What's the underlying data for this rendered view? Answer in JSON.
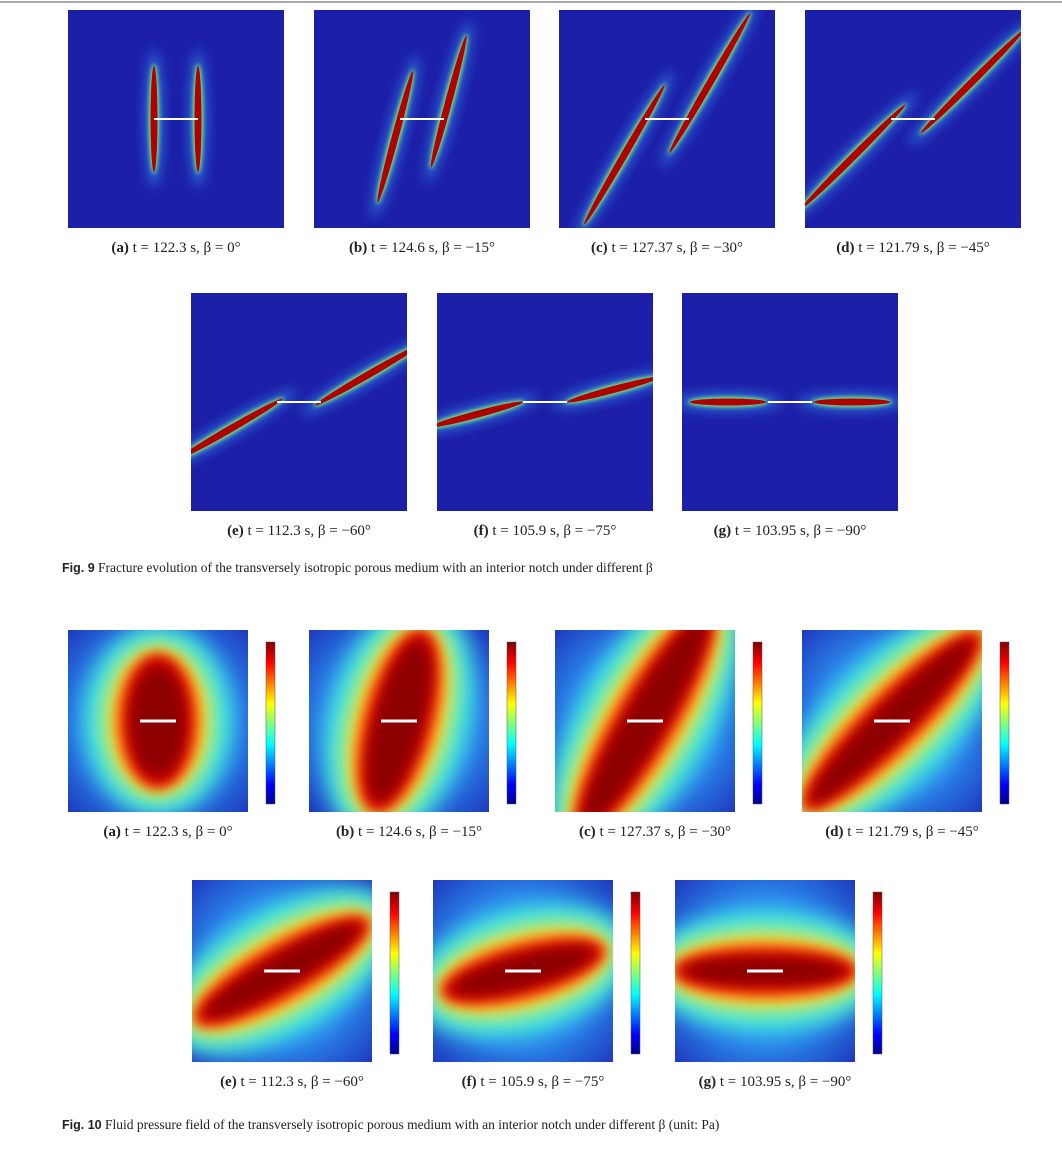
{
  "figures": [
    {
      "panels": [
        {
          "label": "(a)",
          "caption": "t = 122.3 s, β = 0°"
        },
        {
          "label": "(b)",
          "caption": "t = 124.6 s, β = −15°"
        },
        {
          "label": "(c)",
          "caption": "t = 127.37 s, β = −30°"
        },
        {
          "label": "(d)",
          "caption": "t = 121.79 s, β = −45°"
        },
        {
          "label": "(e)",
          "caption": "t = 112.3 s, β = −60°"
        },
        {
          "label": "(f)",
          "caption": "t = 105.9 s, β = −75°"
        },
        {
          "label": "(g)",
          "caption": "t = 103.95 s, β = −90°"
        }
      ],
      "caption_label": "Fig. 9",
      "caption": "Fracture evolution of the transversely isotropic porous medium with an interior notch under different β"
    },
    {
      "panels": [
        {
          "label": "(a)",
          "caption": "t = 122.3 s, β = 0°"
        },
        {
          "label": "(b)",
          "caption": "t = 124.6 s, β = −15°"
        },
        {
          "label": "(c)",
          "caption": "t = 127.37 s, β = −30°"
        },
        {
          "label": "(d)",
          "caption": "t = 121.79 s, β = −45°"
        },
        {
          "label": "(e)",
          "caption": "t = 112.3 s, β = −60°"
        },
        {
          "label": "(f)",
          "caption": "t = 105.9 s, β = −75°"
        },
        {
          "label": "(g)",
          "caption": "t = 103.95 s, β = −90°"
        }
      ],
      "caption_label": "Fig. 10",
      "caption": "Fluid pressure field of the transversely isotropic porous medium with an interior notch under different β (unit: Pa)"
    }
  ]
}
